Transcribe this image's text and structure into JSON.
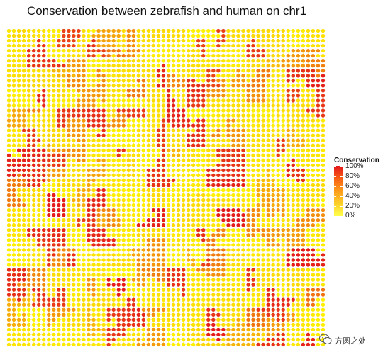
{
  "chart_data": {
    "type": "scatter",
    "subtype": "hilbert-curve",
    "title": "Conservation between zebrafish and human on chr1",
    "colorbar": {
      "title": "Conservation",
      "ticks": [
        "100%",
        "80%",
        "60%",
        "40%",
        "20%",
        "0%"
      ],
      "range": [
        0,
        1
      ],
      "colors": [
        "#FFFF4C",
        "#FFD02A",
        "#FE9E1C",
        "#F96114",
        "#E41A1C"
      ]
    },
    "hilbert_order": 6,
    "low_color": "#FFF200",
    "high_color": "#E41A1C",
    "high_conservation_regions": [
      [
        2,
        4
      ],
      [
        3,
        4
      ],
      [
        2,
        5
      ],
      [
        0,
        2
      ],
      [
        1,
        2
      ],
      [
        0,
        3
      ],
      [
        5,
        1
      ],
      [
        6,
        1
      ],
      [
        4,
        5
      ],
      [
        4,
        6
      ],
      [
        5,
        6
      ],
      [
        10,
        8
      ],
      [
        11,
        8
      ],
      [
        11,
        9
      ],
      [
        12,
        14
      ],
      [
        13,
        14
      ],
      [
        15,
        12
      ],
      [
        15,
        13
      ],
      [
        8,
        11
      ],
      [
        9,
        11
      ],
      [
        9,
        12
      ],
      [
        14,
        4
      ],
      [
        15,
        4
      ],
      [
        14,
        5
      ],
      [
        3,
        10
      ],
      [
        3,
        11
      ],
      [
        4,
        11
      ],
      [
        7,
        8
      ],
      [
        7,
        9
      ],
      [
        6,
        14
      ],
      [
        7,
        14
      ],
      [
        1,
        14
      ],
      [
        1,
        15
      ],
      [
        12,
        1
      ],
      [
        13,
        1
      ],
      [
        13,
        2
      ],
      [
        10,
        3
      ],
      [
        11,
        6
      ],
      [
        0,
        7
      ],
      [
        0,
        8
      ]
    ]
  },
  "watermark": {
    "text": "方圆之处",
    "icon": "wechat-icon"
  }
}
